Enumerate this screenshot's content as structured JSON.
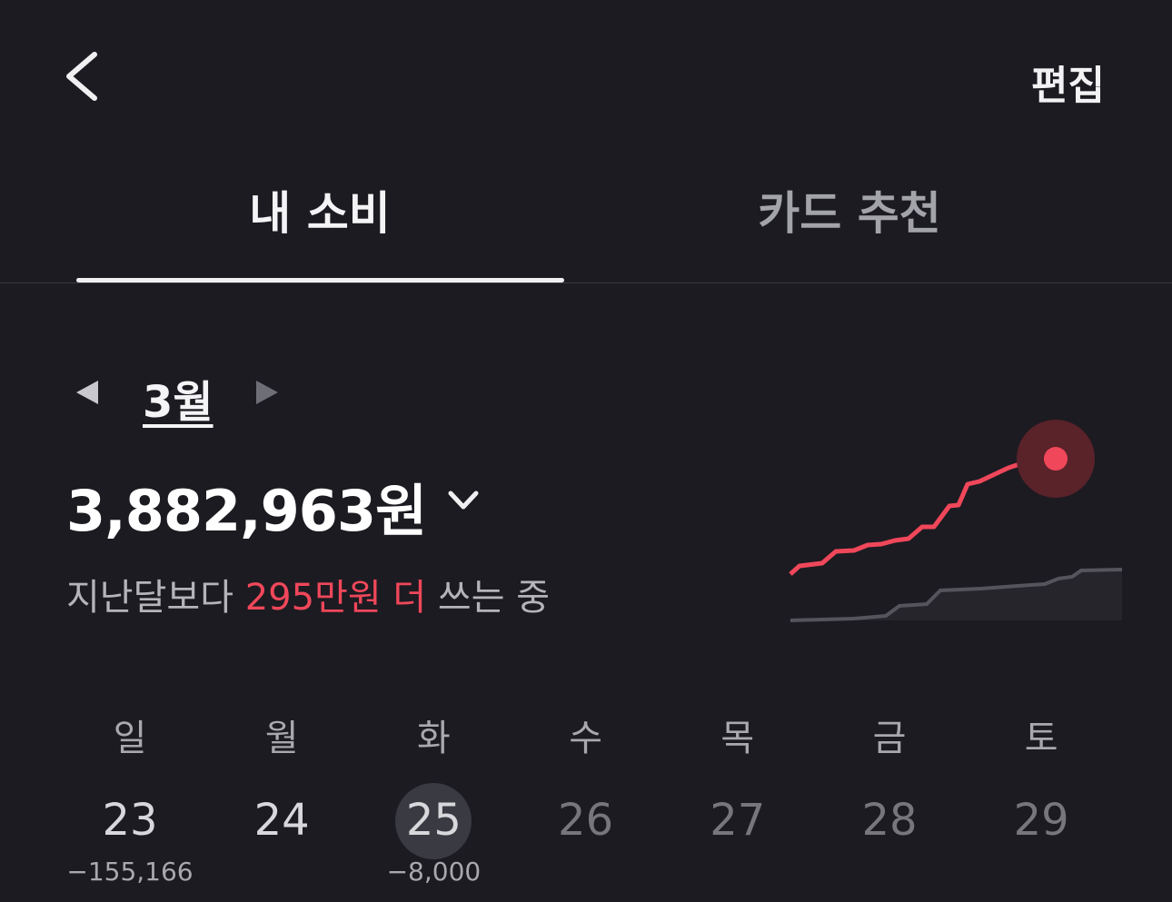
{
  "header": {
    "action": "편집"
  },
  "tabs": [
    "내 소비",
    "카드 추천"
  ],
  "month": "3월",
  "total": "3,882,963원",
  "comparison": {
    "prefix": "지난달보다",
    "highlight": "295만원 더",
    "suffix": "쓰는 중"
  },
  "week": [
    {
      "day": "일",
      "date": "23",
      "amount": "−155,166"
    },
    {
      "day": "월",
      "date": "24"
    },
    {
      "day": "화",
      "date": "25",
      "amount": "−8,000"
    },
    {
      "day": "수",
      "date": "26"
    },
    {
      "day": "목",
      "date": "27"
    },
    {
      "day": "금",
      "date": "28"
    },
    {
      "day": "토",
      "date": "29"
    }
  ]
}
